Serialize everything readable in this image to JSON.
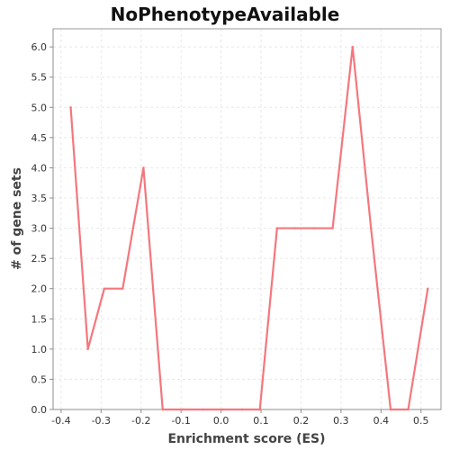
{
  "chart_data": {
    "type": "line",
    "title": "NoPhenotypeAvailable",
    "xlabel": "Enrichment score (ES)",
    "ylabel": "# of gene sets",
    "xlim": [
      -0.42,
      0.55
    ],
    "ylim": [
      0.0,
      6.3
    ],
    "x_ticks": [
      "-0.4",
      "-0.3",
      "-0.2",
      "-0.1",
      "0.0",
      "0.1",
      "0.2",
      "0.3",
      "0.4",
      "0.5"
    ],
    "y_ticks": [
      "0.0",
      "0.5",
      "1.0",
      "1.5",
      "2.0",
      "2.5",
      "3.0",
      "3.5",
      "4.0",
      "4.5",
      "5.0",
      "5.5",
      "6.0"
    ],
    "grid": true,
    "line_color": "#f4777d",
    "series": [
      {
        "x": [
          -0.376,
          -0.333,
          -0.292,
          -0.246,
          -0.194,
          -0.146,
          -0.096,
          -0.046,
          0.004,
          0.052,
          0.097,
          0.14,
          0.184,
          0.232,
          0.279,
          0.329,
          0.375,
          0.424,
          0.468,
          0.517
        ],
        "y": [
          5.0,
          1.0,
          2.0,
          2.0,
          4.0,
          0.0,
          0.0,
          0.0,
          0.0,
          0.0,
          0.0,
          3.0,
          3.0,
          3.0,
          3.0,
          6.0,
          3.0,
          0.0,
          0.0,
          2.0
        ]
      }
    ]
  }
}
